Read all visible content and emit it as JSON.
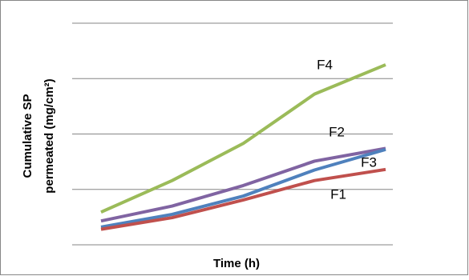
{
  "chart_data": {
    "type": "line",
    "y_label": [
      "Cumulative SP",
      "permeated (mg/cm²)"
    ],
    "x_label": "Time (h)",
    "categories": [
      null,
      null,
      null,
      null,
      null
    ],
    "ylim": [
      0,
      4
    ],
    "yticks": [
      0,
      1,
      2,
      3,
      4
    ],
    "grid": true,
    "series": [
      {
        "name": "F4",
        "color": "#9bbb59",
        "values": [
          0.59,
          1.16,
          1.83,
          2.72,
          3.25
        ]
      },
      {
        "name": "F2",
        "color": "#8064a2",
        "values": [
          0.43,
          0.7,
          1.07,
          1.51,
          1.74
        ]
      },
      {
        "name": "F3",
        "color": "#4f81bd",
        "values": [
          0.32,
          0.55,
          0.88,
          1.35,
          1.72
        ]
      },
      {
        "name": "F1",
        "color": "#c0504d",
        "values": [
          0.28,
          0.49,
          0.81,
          1.16,
          1.36
        ]
      }
    ]
  }
}
